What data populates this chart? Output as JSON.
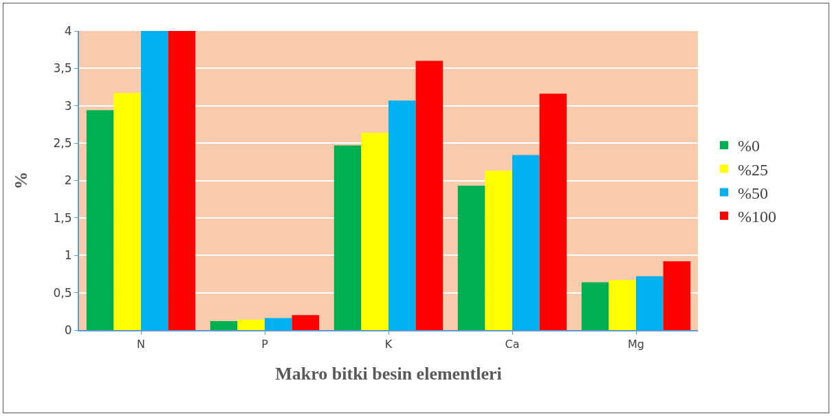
{
  "chart_data": {
    "type": "bar",
    "xlabel": "Makro bitki besin elementleri",
    "ylabel": "%",
    "categories": [
      "N",
      "P",
      "K",
      "Ca",
      "Mg"
    ],
    "series": [
      {
        "name": "%0",
        "color": "#00b050",
        "values": [
          2.94,
          0.12,
          2.47,
          1.93,
          0.64
        ]
      },
      {
        "name": "%25",
        "color": "#ffff00",
        "values": [
          3.17,
          0.14,
          2.64,
          2.13,
          0.67
        ]
      },
      {
        "name": "%50",
        "color": "#00b0f0",
        "values": [
          4.0,
          0.16,
          3.07,
          2.34,
          0.72
        ]
      },
      {
        "name": "%100",
        "color": "#ff0000",
        "values": [
          4.0,
          0.2,
          3.6,
          3.16,
          0.92
        ]
      }
    ],
    "ylim": [
      0,
      4
    ],
    "yticks": [
      {
        "value": 0,
        "label": "0"
      },
      {
        "value": 0.5,
        "label": "0,5"
      },
      {
        "value": 1,
        "label": "1"
      },
      {
        "value": 1.5,
        "label": "1,5"
      },
      {
        "value": 2,
        "label": "2"
      },
      {
        "value": 2.5,
        "label": "2,5"
      },
      {
        "value": 3,
        "label": "3"
      },
      {
        "value": 3.5,
        "label": "3,5"
      },
      {
        "value": 4,
        "label": "4"
      }
    ],
    "grid": "y",
    "legend": "right"
  }
}
